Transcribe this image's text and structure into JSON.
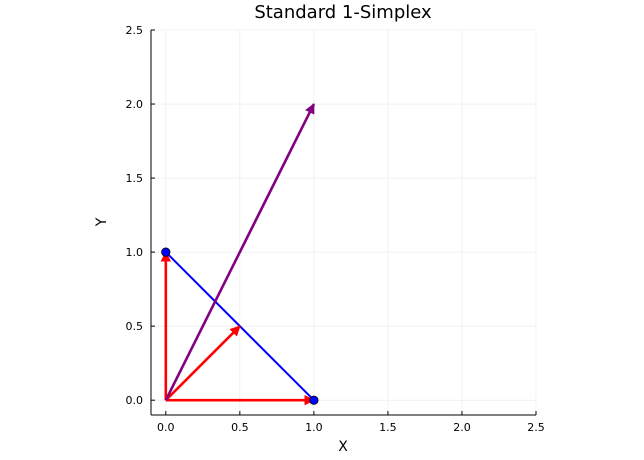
{
  "chart_data": {
    "type": "line",
    "title": "Standard 1-Simplex",
    "xlabel": "X",
    "ylabel": "Y",
    "xlim": [
      -0.1,
      2.5
    ],
    "ylim": [
      -0.1,
      2.5
    ],
    "xticks": [
      0.0,
      0.5,
      1.0,
      1.5,
      2.0,
      2.5
    ],
    "yticks": [
      0.0,
      0.5,
      1.0,
      1.5,
      2.0,
      2.5
    ],
    "xtick_labels": [
      "0.0",
      "0.5",
      "1.0",
      "1.5",
      "2.0",
      "2.5"
    ],
    "ytick_labels": [
      "0.0",
      "0.5",
      "1.0",
      "1.5",
      "2.0",
      "2.5"
    ],
    "grid": true,
    "legend": "none",
    "simplex_segment": {
      "x": [
        0,
        1
      ],
      "y": [
        1,
        0
      ],
      "color": "#0000ff"
    },
    "vertices": [
      {
        "x": 0,
        "y": 1,
        "color": "#0000ff"
      },
      {
        "x": 1,
        "y": 0,
        "color": "#0000ff"
      }
    ],
    "arrows": [
      {
        "from": [
          0,
          0
        ],
        "to": [
          1,
          0
        ],
        "color": "#ff0000"
      },
      {
        "from": [
          0,
          0
        ],
        "to": [
          0,
          1
        ],
        "color": "#ff0000"
      },
      {
        "from": [
          0,
          0
        ],
        "to": [
          0.5,
          0.5
        ],
        "color": "#ff0000"
      },
      {
        "from": [
          0,
          0
        ],
        "to": [
          1,
          2
        ],
        "color": "#800080"
      }
    ]
  }
}
